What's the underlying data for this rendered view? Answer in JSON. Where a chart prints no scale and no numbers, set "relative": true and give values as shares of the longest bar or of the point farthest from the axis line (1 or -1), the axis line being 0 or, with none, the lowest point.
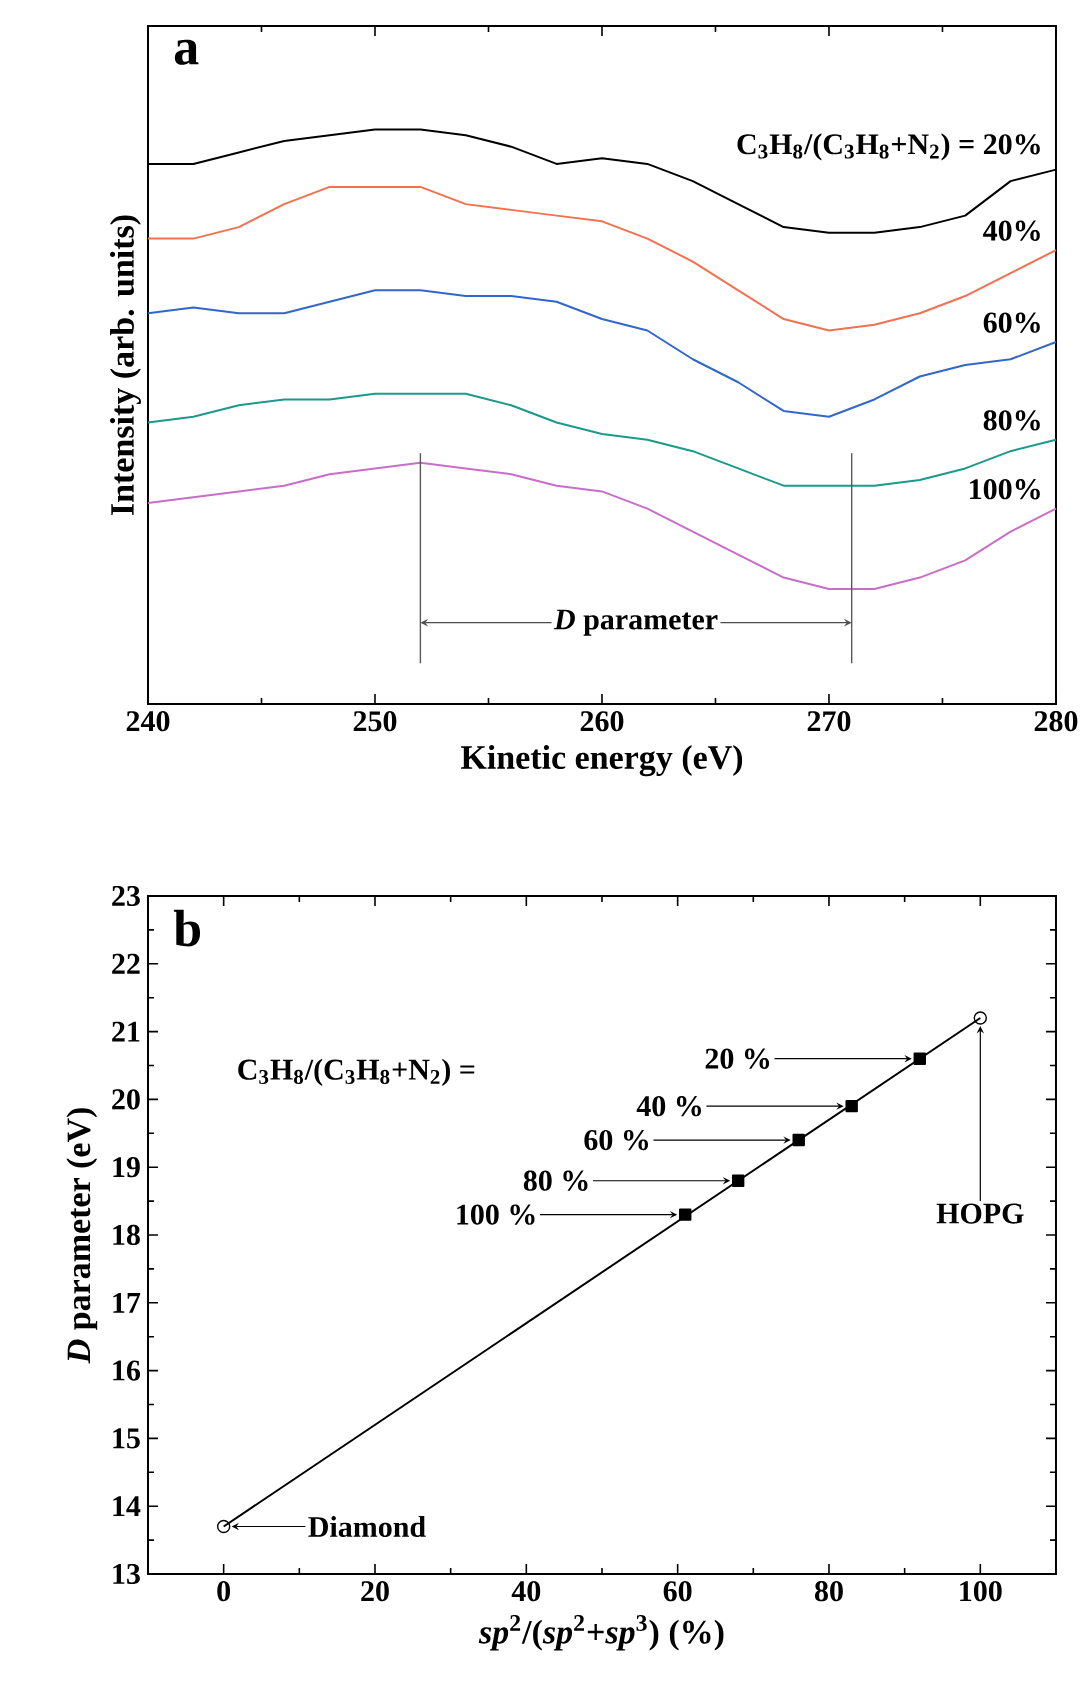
{
  "chart_data": [
    {
      "type": "line",
      "title": "a",
      "xlabel": "Kinetic energy (eV)",
      "ylabel": "Intensity (arb. units)",
      "relative": true,
      "marker": "none",
      "xlim": [
        240,
        280
      ],
      "xticks": [
        240,
        250,
        260,
        270,
        280
      ],
      "x": [
        240,
        242,
        244,
        246,
        248,
        250,
        252,
        254,
        256,
        258,
        260,
        262,
        264,
        266,
        268,
        270,
        272,
        274,
        276,
        278,
        280
      ],
      "series": [
        {
          "name": "C$_{3}$H$_{8}$/(C$_{3}$H$_{8}$+N$_{2}$) = 20%",
          "color": "#000000",
          "values": [
            0.94,
            0.94,
            0.96,
            0.98,
            0.99,
            1.0,
            1.0,
            0.99,
            0.97,
            0.94,
            0.95,
            0.94,
            0.91,
            0.87,
            0.83,
            0.82,
            0.82,
            0.83,
            0.85,
            0.91,
            0.93
          ]
        },
        {
          "name": "40%",
          "color": "#f2714f",
          "values": [
            0.81,
            0.81,
            0.83,
            0.87,
            0.9,
            0.9,
            0.9,
            0.87,
            0.86,
            0.85,
            0.84,
            0.81,
            0.77,
            0.72,
            0.67,
            0.65,
            0.66,
            0.68,
            0.71,
            0.75,
            0.79
          ]
        },
        {
          "name": "60%",
          "color": "#3366cc",
          "values": [
            0.68,
            0.69,
            0.68,
            0.68,
            0.7,
            0.72,
            0.72,
            0.71,
            0.71,
            0.7,
            0.67,
            0.65,
            0.6,
            0.56,
            0.51,
            0.5,
            0.53,
            0.57,
            0.59,
            0.6,
            0.63
          ]
        },
        {
          "name": "80%",
          "color": "#1a9a8a",
          "values": [
            0.49,
            0.5,
            0.52,
            0.53,
            0.53,
            0.54,
            0.54,
            0.54,
            0.52,
            0.49,
            0.47,
            0.46,
            0.44,
            0.41,
            0.38,
            0.38,
            0.38,
            0.39,
            0.41,
            0.44,
            0.46
          ]
        },
        {
          "name": "100%",
          "color": "#c86ec8",
          "values": [
            0.35,
            0.36,
            0.37,
            0.38,
            0.4,
            0.41,
            0.42,
            0.41,
            0.4,
            0.38,
            0.37,
            0.34,
            0.3,
            0.26,
            0.22,
            0.2,
            0.2,
            0.22,
            0.25,
            0.3,
            0.34
          ]
        }
      ],
      "ref_lines": [
        {
          "axis": "x",
          "value": 252
        },
        {
          "axis": "x",
          "value": 271
        }
      ],
      "annotations": [
        "*D* parameter"
      ]
    },
    {
      "type": "line",
      "title": "b",
      "xlabel": "*sp*$^{2}$/(*sp*$^{2}$+*sp*$^{3}$) (%)",
      "ylabel": "*D* parameter (eV)",
      "xlim": [
        -10,
        110
      ],
      "ylim": [
        13,
        23
      ],
      "xticks": [
        0,
        20,
        40,
        60,
        80,
        100
      ],
      "yticks": [
        13,
        14,
        15,
        16,
        17,
        18,
        19,
        20,
        21,
        22,
        23
      ],
      "series": [
        {
          "type": "line",
          "color": "#000000",
          "x": [
            0,
            100
          ],
          "values": [
            13.7,
            21.2
          ]
        },
        {
          "type": "scatter",
          "marker": "circle",
          "color": "#000000",
          "x": [
            0,
            100
          ],
          "values": [
            13.7,
            21.2
          ]
        },
        {
          "type": "scatter",
          "marker": "square",
          "color": "#000000",
          "x": [
            61,
            68,
            76,
            83,
            92
          ],
          "values": [
            18.3,
            18.8,
            19.4,
            19.9,
            20.6
          ]
        }
      ],
      "annotations": [
        "C$_{3}$H$_{8}$/(C$_{3}$H$_{8}$+N$_{2}$) =",
        "100 %",
        "80 %",
        "60 %",
        "40 %",
        "20 %",
        {
          "text": "Diamond",
          "x": 0,
          "y": 13.7
        },
        {
          "text": "HOPG",
          "x": 100,
          "y": 21.2
        }
      ]
    }
  ]
}
